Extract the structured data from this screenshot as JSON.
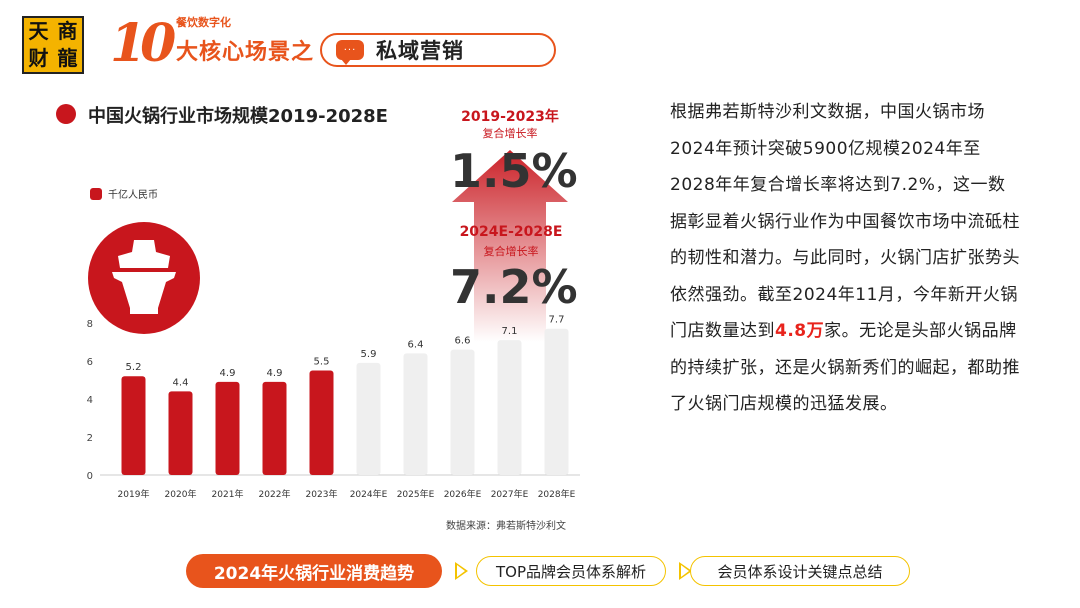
{
  "header": {
    "logo_chars": [
      "天",
      "商",
      "财",
      "龍"
    ],
    "series_number": "10",
    "series_small": "餐饮数字化",
    "series_main": "大核心场景之",
    "topic": "私域营销",
    "topic_icon": "chat-bubble-icon"
  },
  "chart_panel": {
    "title": "中国火锅行业市场规模2019-2028E",
    "legend": "千亿人民币",
    "cagr_hist_label": "2019-2023年",
    "cagr_hist_sub": "复合增长率",
    "cagr_hist_value": "1.5%",
    "cagr_fcst_label": "2024E-2028E",
    "cagr_fcst_sub": "复合增长率",
    "cagr_fcst_value": "7.2%",
    "source": "数据来源：弗若斯特沙利文"
  },
  "chart_data": {
    "type": "bar",
    "categories": [
      "2019年",
      "2020年",
      "2021年",
      "2022年",
      "2023年",
      "2024年E",
      "2025年E",
      "2026年E",
      "2027年E",
      "2028年E"
    ],
    "values": [
      5.2,
      4.4,
      4.9,
      4.9,
      5.5,
      5.9,
      6.4,
      6.6,
      7.1,
      7.7
    ],
    "forecast_from_index": 5,
    "y_ticks": [
      0,
      2,
      4,
      6,
      8
    ],
    "ylim": [
      0,
      8
    ],
    "unit": "千亿人民币",
    "colors": {
      "actual": "#c8161d",
      "forecast": "#efefef",
      "arrow": "#c8161d"
    }
  },
  "body_text": {
    "p1": "根据弗若斯特沙利文数据，中国火锅市场2024年预计突破5900亿规模2024年至2028年年复合增长率将达到7.2%，这一数据彰显着火锅行业作为中国餐饮市场中流砥柱的韧性和潜力。与此同时，火锅门店扩张势头依然强劲。截至2024年11月，今年新开火锅门店数量达到",
    "highlight": "4.8万",
    "p2": "家。无论是头部火锅品牌的持续扩张，还是火锅新秀们的崛起，都助推了火锅门店规模的迅猛发展。"
  },
  "bottom_nav": {
    "active": "2024年火锅行业消费趋势",
    "item2": "TOP品牌会员体系解析",
    "item3": "会员体系设计关键点总结"
  }
}
